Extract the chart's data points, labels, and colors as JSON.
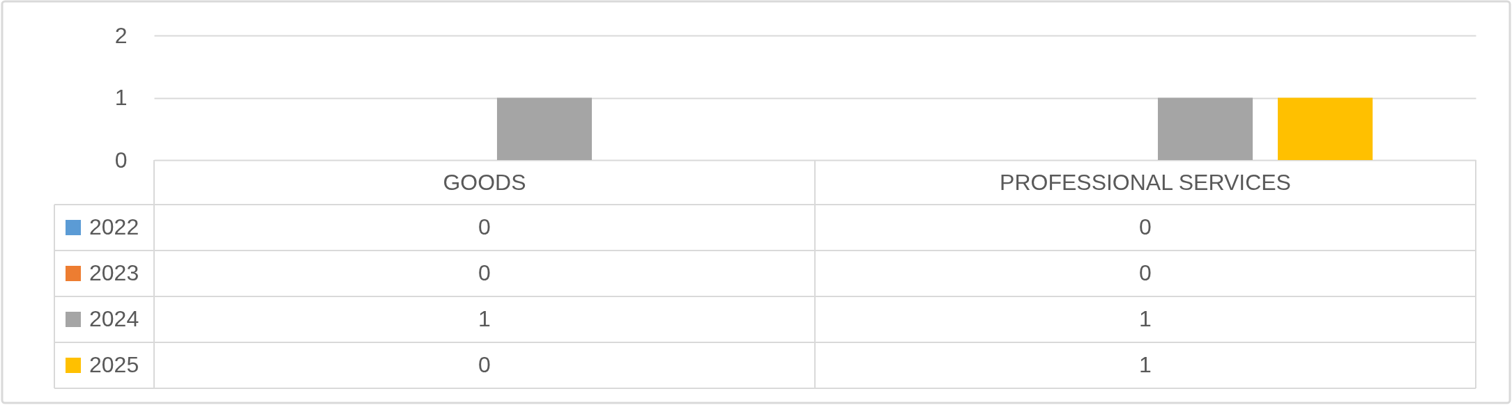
{
  "chart_data": {
    "type": "bar",
    "categories": [
      "GOODS",
      "PROFESSIONAL SERVICES"
    ],
    "series": [
      {
        "name": "2022",
        "color": "#5b9bd5",
        "values": [
          0,
          0
        ]
      },
      {
        "name": "2023",
        "color": "#ed7d31",
        "values": [
          0,
          0
        ]
      },
      {
        "name": "2024",
        "color": "#a5a5a5",
        "values": [
          1,
          1
        ]
      },
      {
        "name": "2025",
        "color": "#ffc000",
        "values": [
          0,
          1
        ]
      }
    ],
    "ylim": [
      0,
      2
    ],
    "yticks": [
      0,
      1,
      2
    ],
    "grid": "y",
    "legend": "bottom left",
    "data_labels": true
  }
}
